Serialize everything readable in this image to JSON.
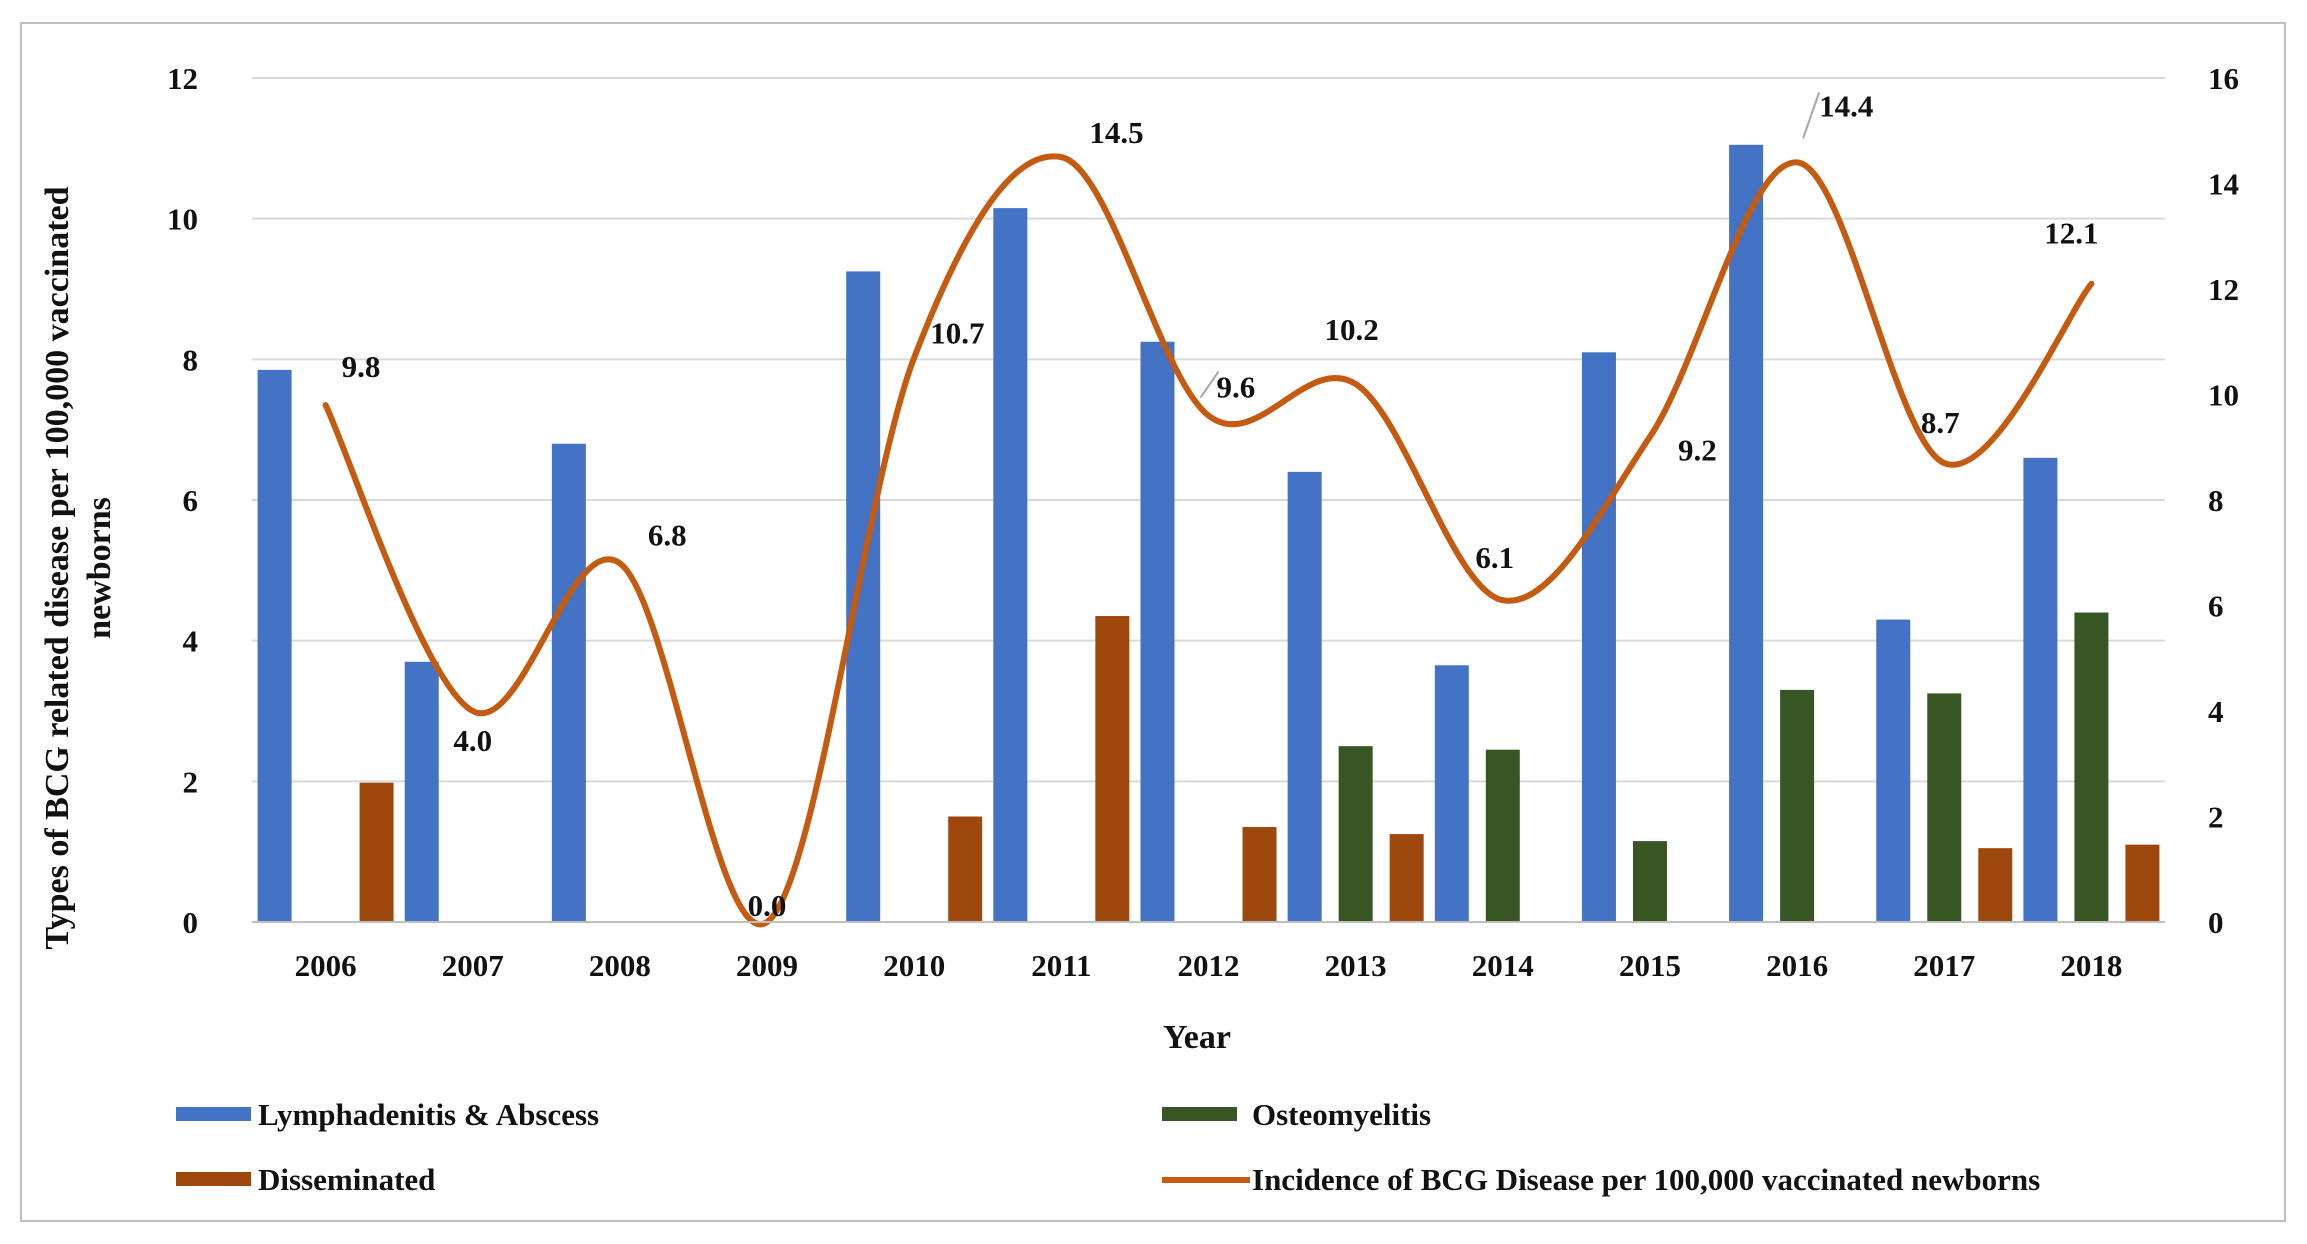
{
  "chart_data": {
    "type": "bar",
    "title": "",
    "xlabel": "Year",
    "ylabel_line1": "Types  of BCG related disease per 100,000 vaccinated",
    "ylabel_line2": "newborns",
    "ylim": [
      0,
      12
    ],
    "y2lim": [
      0,
      16
    ],
    "yticks": [
      "0",
      "2",
      "4",
      "6",
      "8",
      "10",
      "12"
    ],
    "y2ticks": [
      "0",
      "2",
      "4",
      "6",
      "8",
      "10",
      "12",
      "14",
      "16"
    ],
    "categories": [
      "2006",
      "2007",
      "2008",
      "2009",
      "2010",
      "2011",
      "2012",
      "2013",
      "2014",
      "2015",
      "2016",
      "2017",
      "2018"
    ],
    "series": [
      {
        "name": "Lymphadenitis & Abscess",
        "kind": "bar",
        "axis": "left",
        "color": "#4472c4",
        "values": [
          7.85,
          3.7,
          6.8,
          0,
          9.25,
          10.15,
          8.25,
          6.4,
          3.65,
          8.1,
          11.05,
          4.3,
          6.6
        ]
      },
      {
        "name": "Osteomyelitis",
        "kind": "bar",
        "axis": "left",
        "color": "#375623",
        "values": [
          0,
          0,
          0,
          0,
          0,
          0,
          0,
          2.5,
          2.45,
          1.15,
          3.3,
          3.25,
          4.4
        ]
      },
      {
        "name": "Disseminated",
        "kind": "bar",
        "axis": "left",
        "color": "#9e480e",
        "values": [
          1.98,
          0,
          0,
          0,
          1.5,
          4.35,
          1.35,
          1.25,
          0,
          0,
          0,
          1.05,
          1.1
        ]
      },
      {
        "name": "Incidence of BCG Disease per 100,000 vaccinated newborns",
        "kind": "line",
        "axis": "right",
        "color": "#c55a11",
        "values": [
          9.8,
          4.0,
          6.8,
          0.0,
          10.7,
          14.5,
          9.6,
          10.2,
          6.1,
          9.2,
          14.4,
          8.7,
          12.1
        ],
        "labels": [
          "9.8",
          "4.0",
          "6.8",
          "0.0",
          "10.7",
          "14.5",
          "9.6",
          "10.2",
          "6.1",
          "9.2",
          "14.4",
          "8.7",
          "12.1"
        ]
      }
    ],
    "legend_position": "bottom"
  }
}
